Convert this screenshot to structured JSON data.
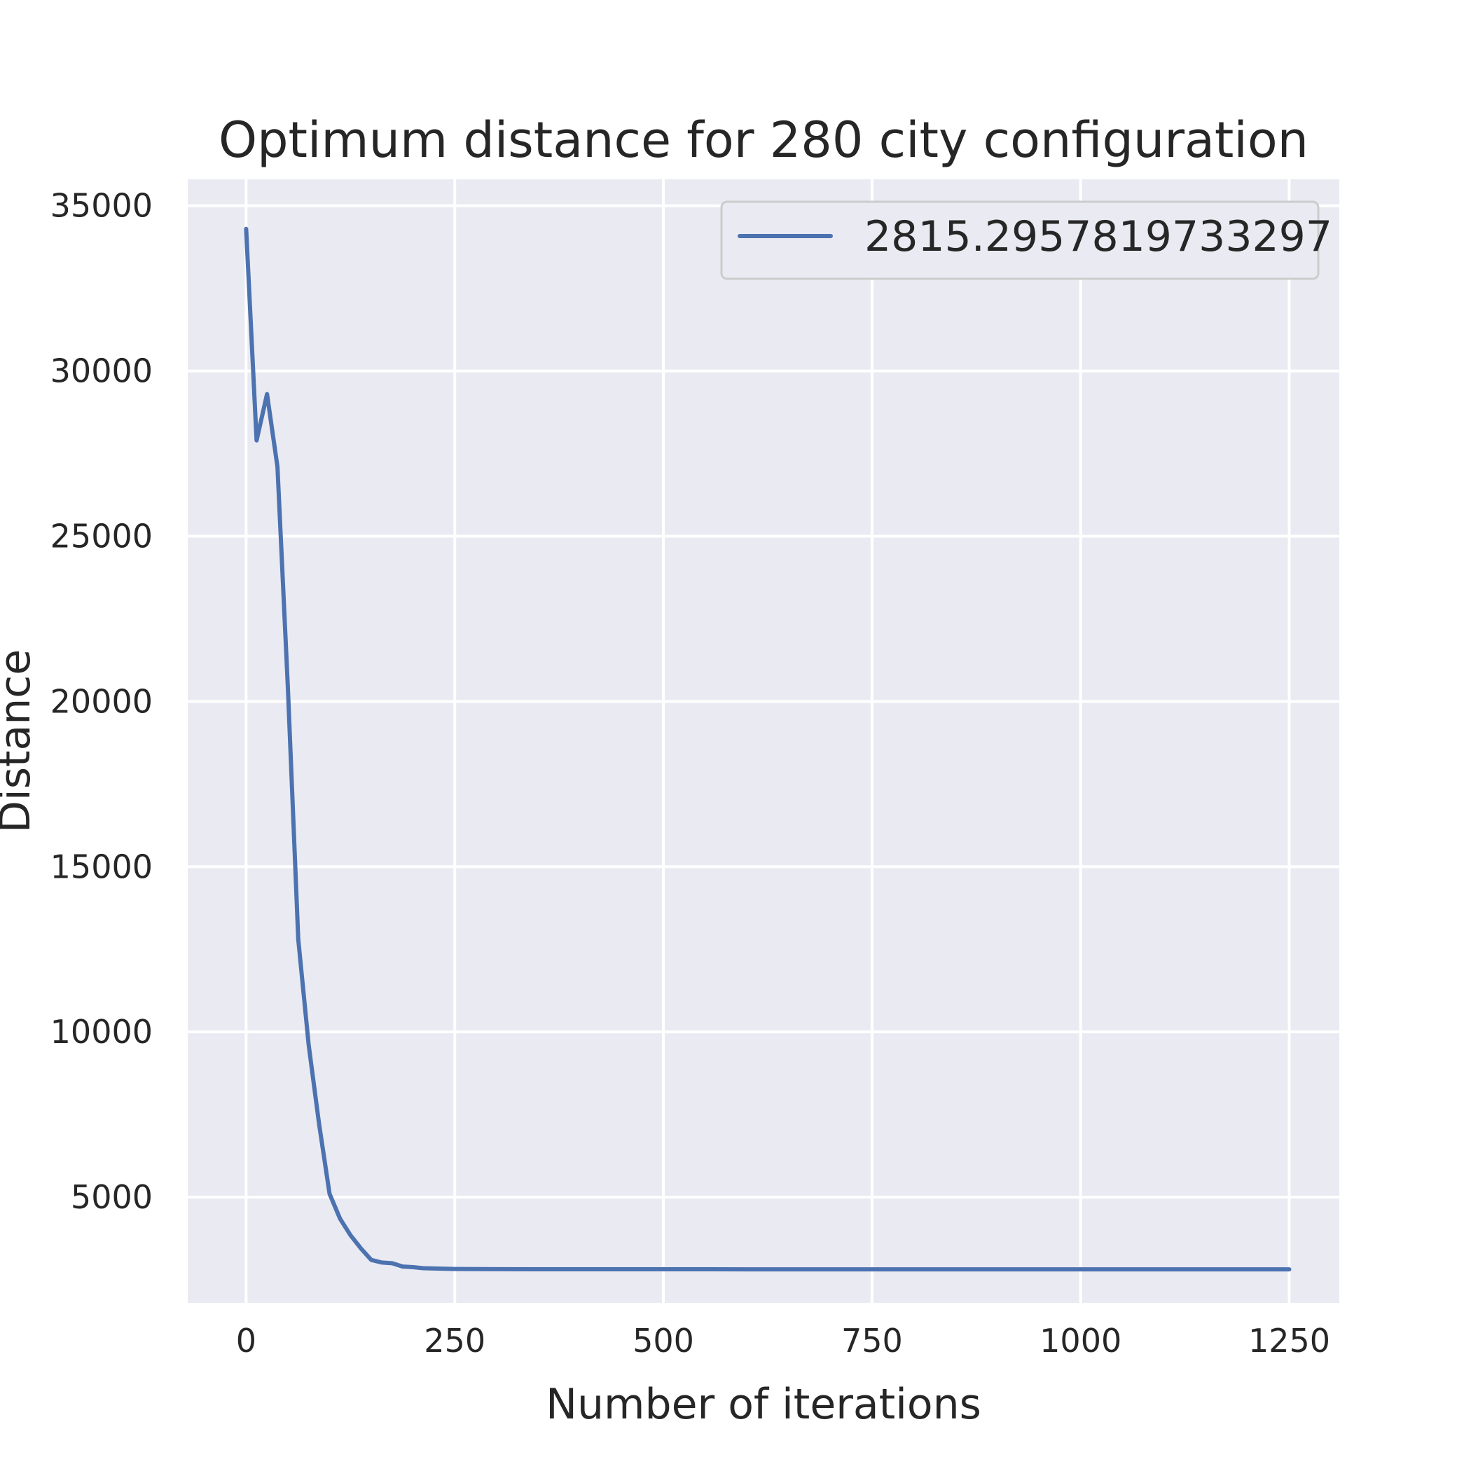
{
  "chart_data": {
    "type": "line",
    "title": "Optimum distance for 280 city configuration",
    "xlabel": "Number of iterations",
    "ylabel": "Distance",
    "xlim": [
      -70,
      1310
    ],
    "ylim": [
      1800,
      35800
    ],
    "xticks": [
      0,
      250,
      500,
      750,
      1000,
      1250
    ],
    "yticks": [
      5000,
      10000,
      15000,
      20000,
      25000,
      30000,
      35000
    ],
    "grid": true,
    "legend_position": "top-right",
    "colors": {
      "background": "#eaeaf2",
      "grid": "#ffffff",
      "line": "#4c72b0"
    },
    "series": [
      {
        "name": "2815.2957819733297",
        "x": [
          0,
          12.5,
          25,
          37.5,
          50,
          62.5,
          75,
          87.5,
          100,
          112.5,
          125,
          137.5,
          150,
          162.5,
          175,
          187.5,
          200,
          212.5,
          225,
          237.5,
          250,
          300,
          400,
          500,
          600,
          700,
          800,
          900,
          1000,
          1100,
          1200,
          1250
        ],
        "y": [
          34300,
          27900,
          29300,
          27100,
          20400,
          12800,
          9600,
          7200,
          5100,
          4350,
          3850,
          3450,
          3100,
          3020,
          3000,
          2900,
          2880,
          2850,
          2840,
          2835,
          2825,
          2820,
          2818,
          2817,
          2816,
          2816,
          2816,
          2816,
          2815.3,
          2815.3,
          2815.3,
          2815.3
        ]
      }
    ]
  }
}
